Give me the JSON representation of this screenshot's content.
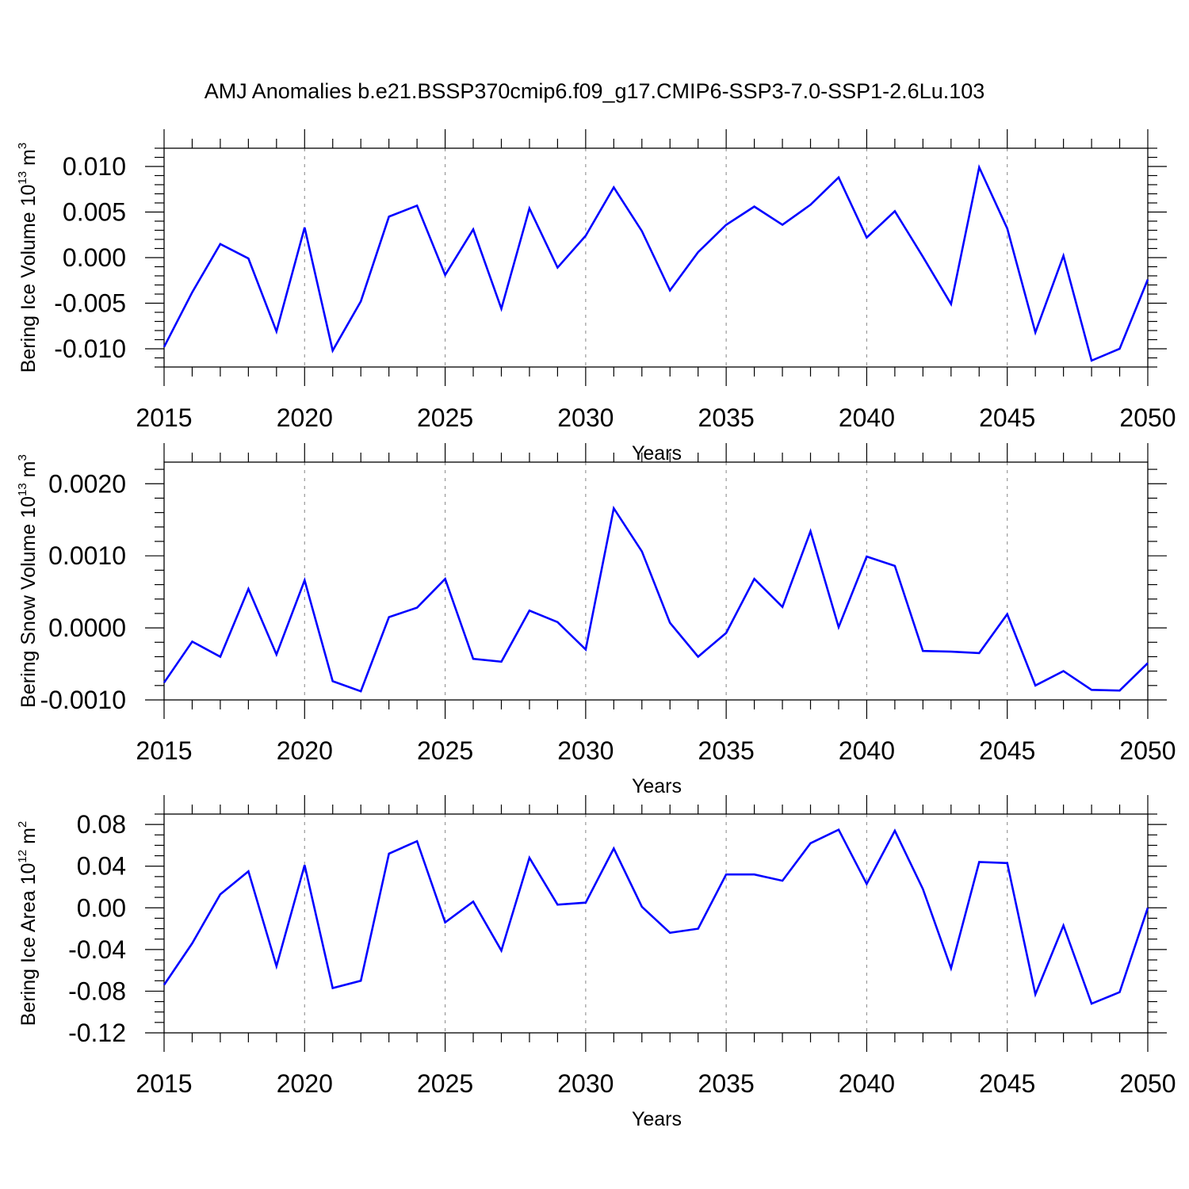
{
  "chart_data": [
    {
      "type": "line",
      "title": "AMJ Anomalies b.e21.BSSP370cmip6.f09_g17.CMIP6-SSP3-7.0-SSP1-2.6Lu.103",
      "xlabel": "Years",
      "ylabel": {
        "base": "Bering Ice Volume 10",
        "exp1": "13",
        "unit": " m",
        "exp2": "3"
      },
      "xlim": [
        2015,
        2050
      ],
      "ylim": [
        -0.012,
        0.012
      ],
      "xticks": [
        2015,
        2020,
        2025,
        2030,
        2035,
        2040,
        2045,
        2050
      ],
      "xtick_labels": [
        "2015",
        "2020",
        "2025",
        "2030",
        "2035",
        "2040",
        "2045",
        "2050"
      ],
      "yticks": [
        -0.01,
        -0.005,
        0.0,
        0.005,
        0.01
      ],
      "ytick_labels": [
        "-0.010",
        "-0.005",
        "0.000",
        "0.005",
        "0.010"
      ],
      "yminor_step": 0.001,
      "gridlines_x": "dashed at major ticks",
      "line_color": "#0000ff",
      "x": [
        2015,
        2016,
        2017,
        2018,
        2019,
        2020,
        2021,
        2022,
        2023,
        2024,
        2025,
        2026,
        2027,
        2028,
        2029,
        2030,
        2031,
        2032,
        2033,
        2034,
        2035,
        2036,
        2037,
        2038,
        2039,
        2040,
        2041,
        2042,
        2043,
        2044,
        2045,
        2046,
        2047,
        2048,
        2049,
        2050
      ],
      "values": [
        -0.0098,
        -0.0038,
        0.0015,
        -0.0001,
        -0.0081,
        0.0033,
        -0.0102,
        -0.0048,
        0.0045,
        0.0057,
        -0.0019,
        0.0031,
        -0.0056,
        0.0054,
        -0.0011,
        0.0024,
        0.0077,
        0.0029,
        -0.0036,
        0.0006,
        0.0036,
        0.0056,
        0.0036,
        0.0058,
        0.0088,
        0.0022,
        0.0051,
        0.0001,
        -0.0051,
        0.0099,
        0.0032,
        -0.0082,
        0.0002,
        -0.0113,
        -0.01,
        -0.0024
      ]
    },
    {
      "type": "line",
      "xlabel": "Years",
      "ylabel": {
        "base": "Bering Snow Volume 10",
        "exp1": "13",
        "unit": " m",
        "exp2": "3"
      },
      "xlim": [
        2015,
        2050
      ],
      "ylim": [
        -0.001,
        0.0023
      ],
      "xticks": [
        2015,
        2020,
        2025,
        2030,
        2035,
        2040,
        2045,
        2050
      ],
      "xtick_labels": [
        "2015",
        "2020",
        "2025",
        "2030",
        "2035",
        "2040",
        "2045",
        "2050"
      ],
      "yticks": [
        -0.001,
        0.0,
        0.001,
        0.002
      ],
      "ytick_labels": [
        "-0.0010",
        "0.0000",
        "0.0010",
        "0.0020"
      ],
      "yminor_step": 0.0002,
      "gridlines_x": "dashed at major ticks",
      "line_color": "#0000ff",
      "x": [
        2015,
        2016,
        2017,
        2018,
        2019,
        2020,
        2021,
        2022,
        2023,
        2024,
        2025,
        2026,
        2027,
        2028,
        2029,
        2030,
        2031,
        2032,
        2033,
        2034,
        2035,
        2036,
        2037,
        2038,
        2039,
        2040,
        2041,
        2042,
        2043,
        2044,
        2045,
        2046,
        2047,
        2048,
        2049,
        2050
      ],
      "values": [
        -0.00076,
        -0.00019,
        -0.0004,
        0.00054,
        -0.00037,
        0.00066,
        -0.00074,
        -0.00088,
        0.00015,
        0.00028,
        0.00068,
        -0.00043,
        -0.00047,
        0.00024,
        8e-05,
        -0.0003,
        0.00166,
        0.00106,
        7e-05,
        -0.0004,
        -7e-05,
        0.00068,
        0.00029,
        0.00134,
        1e-05,
        0.00099,
        0.00086,
        -0.00032,
        -0.00033,
        -0.00035,
        0.00019,
        -0.0008,
        -0.0006,
        -0.00086,
        -0.00087,
        -0.00049
      ]
    },
    {
      "type": "line",
      "xlabel": "Years",
      "ylabel": {
        "base": "Bering Ice Area 10",
        "exp1": "12",
        "unit": " m",
        "exp2": "2"
      },
      "xlim": [
        2015,
        2050
      ],
      "ylim": [
        -0.12,
        0.09
      ],
      "xticks": [
        2015,
        2020,
        2025,
        2030,
        2035,
        2040,
        2045,
        2050
      ],
      "xtick_labels": [
        "2015",
        "2020",
        "2025",
        "2030",
        "2035",
        "2040",
        "2045",
        "2050"
      ],
      "yticks": [
        -0.12,
        -0.08,
        -0.04,
        0.0,
        0.04,
        0.08
      ],
      "ytick_labels": [
        "-0.12",
        "-0.08",
        "-0.04",
        "0.00",
        "0.04",
        "0.08"
      ],
      "yminor_step": 0.01,
      "gridlines_x": "dashed at major ticks",
      "line_color": "#0000ff",
      "x": [
        2015,
        2016,
        2017,
        2018,
        2019,
        2020,
        2021,
        2022,
        2023,
        2024,
        2025,
        2026,
        2027,
        2028,
        2029,
        2030,
        2031,
        2032,
        2033,
        2034,
        2035,
        2036,
        2037,
        2038,
        2039,
        2040,
        2041,
        2042,
        2043,
        2044,
        2045,
        2046,
        2047,
        2048,
        2049,
        2050
      ],
      "values": [
        -0.074,
        -0.034,
        0.013,
        0.035,
        -0.056,
        0.041,
        -0.077,
        -0.07,
        0.052,
        0.064,
        -0.014,
        0.006,
        -0.041,
        0.048,
        0.003,
        0.005,
        0.057,
        0.001,
        -0.024,
        -0.02,
        0.032,
        0.032,
        0.026,
        0.062,
        0.075,
        0.023,
        0.074,
        0.018,
        -0.058,
        0.044,
        0.043,
        -0.083,
        -0.017,
        -0.092,
        -0.081,
        0.0
      ]
    }
  ]
}
